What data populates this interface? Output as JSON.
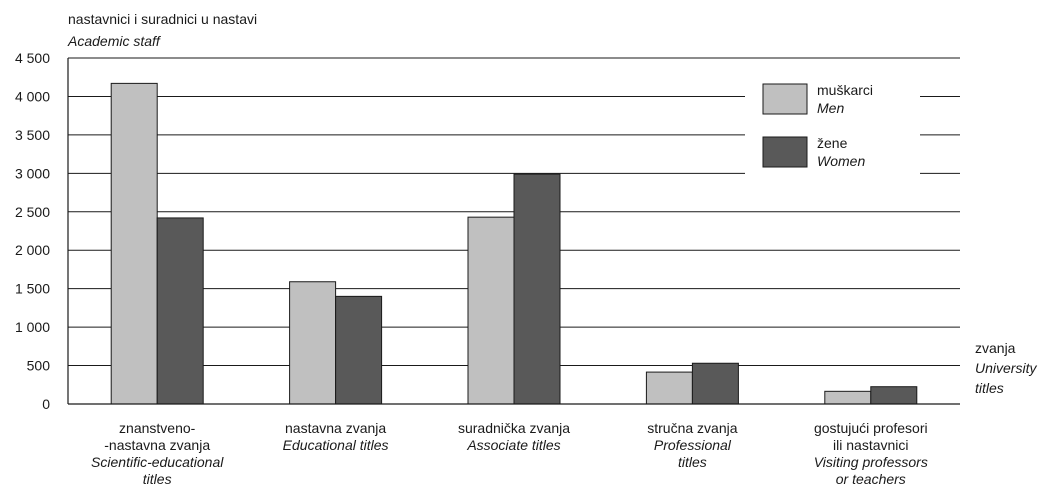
{
  "chart_data": {
    "type": "bar",
    "ylabel": "nastavnici i suradnici u nastavi",
    "ylabel_en": "Academic staff",
    "xlabel": "zvanja",
    "xlabel_en_lines": [
      "University",
      "titles"
    ],
    "ylim": [
      0,
      4500
    ],
    "yticks": [
      0,
      500,
      1000,
      1500,
      2000,
      2500,
      3000,
      3500,
      4000,
      4500
    ],
    "ytick_labels": [
      "0",
      "500",
      "1 000",
      "1 500",
      "2 000",
      "2 500",
      "3 000",
      "3 500",
      "4 000",
      "4 500"
    ],
    "grid": true,
    "legend_position": "top-right",
    "categories": [
      {
        "lines": [
          "znanstveno-",
          "-nastavna zvanja"
        ],
        "en_lines": [
          "Scientific-educational",
          "titles"
        ]
      },
      {
        "lines": [
          "nastavna zvanja"
        ],
        "en_lines": [
          "Educational titles"
        ]
      },
      {
        "lines": [
          "suradnička zvanja"
        ],
        "en_lines": [
          "Associate titles"
        ]
      },
      {
        "lines": [
          "stručna zvanja"
        ],
        "en_lines": [
          "Professional",
          "titles"
        ]
      },
      {
        "lines": [
          "gostujući profesori",
          "ili nastavnici"
        ],
        "en_lines": [
          "Visiting professors",
          "or teachers"
        ]
      }
    ],
    "series": [
      {
        "name": "muškarci",
        "name_en": "Men",
        "color": "#c0c0c0",
        "values": [
          4170,
          1590,
          2430,
          415,
          165
        ]
      },
      {
        "name": "žene",
        "name_en": "Women",
        "color": "#595959",
        "values": [
          2420,
          1400,
          2990,
          530,
          225
        ]
      }
    ]
  }
}
